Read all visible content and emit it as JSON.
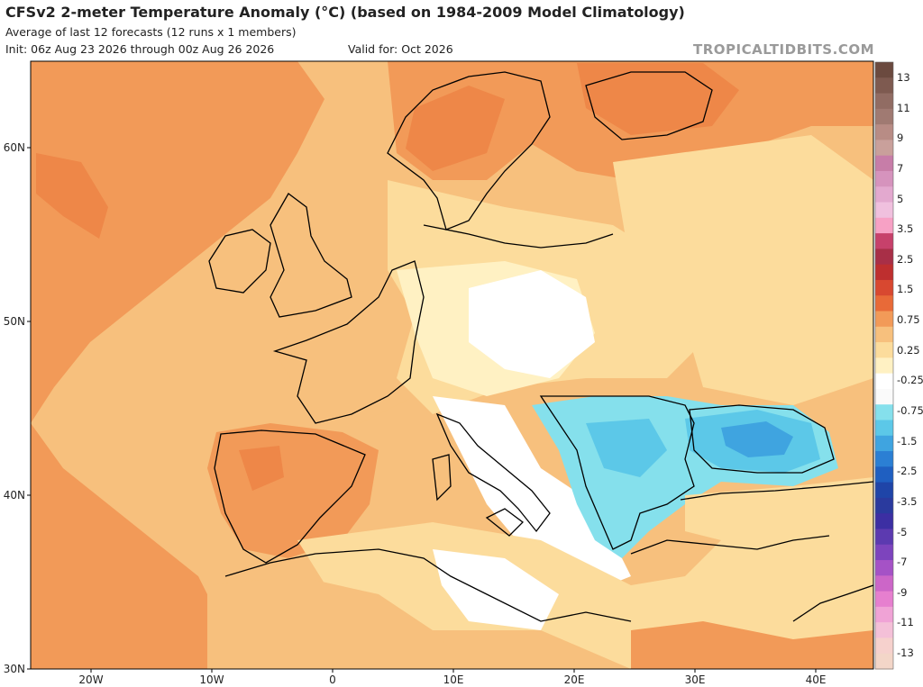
{
  "header": {
    "title": "CFSv2 2-meter Temperature Anomaly (°C) (based on 1984-2009 Model Climatology)",
    "subtitle1": "Average of last 12 forecasts (12 runs x 1 members)",
    "subtitle2": "Init: 06z Aug 23 2026 through 00z Aug 26 2026",
    "valid": "Valid for: Oct 2026",
    "brand": "TROPICALTIDBITS.COM"
  },
  "axes": {
    "lat_labels": [
      "60N",
      "50N",
      "40N",
      "30N"
    ],
    "lon_labels": [
      "20W",
      "10W",
      "0",
      "10E",
      "20E",
      "30E",
      "40E"
    ]
  },
  "colorbar": {
    "labels": [
      "13",
      "11",
      "9",
      "7",
      "5",
      "3.5",
      "2.5",
      "1.5",
      "0.75",
      "0.25",
      "-0.25",
      "-0.75",
      "-1.5",
      "-2.5",
      "-3.5",
      "-5",
      "-7",
      "-9",
      "-11",
      "-13"
    ],
    "colors": [
      "#6b4a3f",
      "#7e5a50",
      "#916c63",
      "#a07a72",
      "#b88c85",
      "#c9a09b",
      "#c77da8",
      "#d693bd",
      "#e3a9cf",
      "#f0c0de",
      "#f7a1c5",
      "#c7416b",
      "#a82f47",
      "#be2f2f",
      "#d84830",
      "#e86a38",
      "#f29a58",
      "#f7c07d",
      "#fcdc9c",
      "#fff1c3",
      "#ffffff",
      "#fafafa",
      "#85e0ec",
      "#5cc8e8",
      "#3fa4e0",
      "#2b7fd4",
      "#1f5fc1",
      "#1f45a8",
      "#2a3a9e",
      "#3c2fa3",
      "#5c3ab0",
      "#7d44bd",
      "#a552c6",
      "#cc66c8",
      "#e67fcf",
      "#f0a3d6",
      "#f4c0d8",
      "#f6d1cd",
      "#f3d6c8"
    ],
    "colors_note": "top to bottom of colorbar"
  },
  "legend_colors": {
    "warm_strong": "#f29a58",
    "warm": "#f7c07d",
    "warm_light": "#fcdc9c",
    "neutral_warm": "#fff1c3",
    "neutral": "#ffffff",
    "cool": "#85e0ec",
    "cool_mid": "#5cc8e8",
    "cool_strong": "#3fa4e0",
    "land_outline": "#000000"
  }
}
